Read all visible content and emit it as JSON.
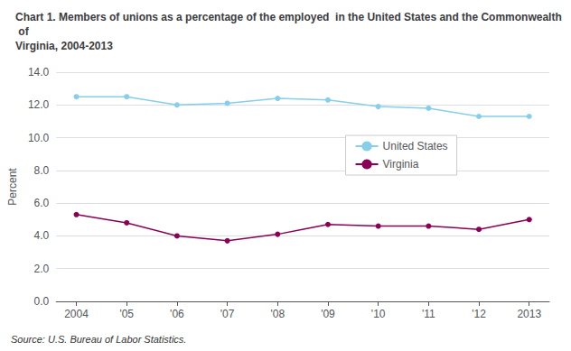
{
  "chart_data": {
    "type": "line",
    "title": "Chart 1. Members of unions as a percentage of the employed  in the United States and the Commonwealth of\nVirginia, 2004-2013",
    "ylabel": "Percent",
    "source": "Source: U.S. Bureau of Labor Statistics.",
    "x": [
      2004,
      2005,
      2006,
      2007,
      2008,
      2009,
      2010,
      2011,
      2012,
      2013
    ],
    "xlim": [
      2003.6,
      2013.4
    ],
    "xticks": [
      2004,
      {
        "value": 2005,
        "label": "'05"
      },
      {
        "value": 2006,
        "label": "'06"
      },
      {
        "value": 2007,
        "label": "'07"
      },
      {
        "value": 2008,
        "label": "'08"
      },
      {
        "value": 2009,
        "label": "'09"
      },
      {
        "value": 2010,
        "label": "'10"
      },
      {
        "value": 2011,
        "label": "'11"
      },
      {
        "value": 2012,
        "label": "'12"
      },
      2013
    ],
    "series": [
      {
        "name": "United States",
        "color": "#87CEEB",
        "marker": "circle",
        "values": [
          12.5,
          12.5,
          12.0,
          12.1,
          12.4,
          12.3,
          11.9,
          11.8,
          11.3,
          11.3
        ]
      },
      {
        "name": "Virginia",
        "color": "#8B0057",
        "marker": "circle",
        "values": [
          5.3,
          4.8,
          4.0,
          3.7,
          4.1,
          4.7,
          4.6,
          4.6,
          4.4,
          5.0
        ]
      }
    ],
    "ylim": [
      0,
      14.0
    ],
    "yticks": [
      {
        "value": 0,
        "label": "0.0"
      },
      {
        "value": 2,
        "label": "2.0"
      },
      {
        "value": 4,
        "label": "4.0"
      },
      {
        "value": 6,
        "label": "6.0"
      },
      {
        "value": 8,
        "label": "8.0"
      },
      {
        "value": 10,
        "label": "10.0"
      },
      {
        "value": 12,
        "label": "12.0"
      },
      {
        "value": 14,
        "label": "14.0"
      }
    ],
    "grid": true,
    "legend": "upper right"
  }
}
